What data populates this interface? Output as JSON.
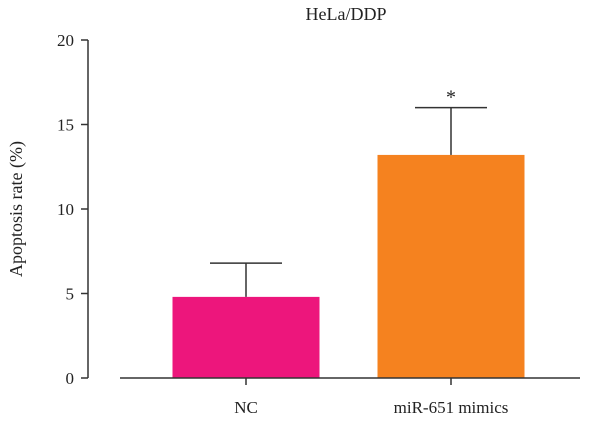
{
  "chart_data": {
    "type": "bar",
    "title": "HeLa/DDP",
    "xlabel": "",
    "ylabel": "Apoptosis rate (%)",
    "ylim": [
      0,
      20
    ],
    "yticks": [
      0,
      5,
      10,
      15,
      20
    ],
    "categories": [
      "NC",
      "miR-651 mimics"
    ],
    "values": [
      4.8,
      13.2
    ],
    "errors": [
      2.0,
      2.8
    ],
    "annotations": [
      "",
      "*"
    ],
    "colors": [
      "#ed167c",
      "#f5821f"
    ],
    "grid": false,
    "legend": "none"
  }
}
